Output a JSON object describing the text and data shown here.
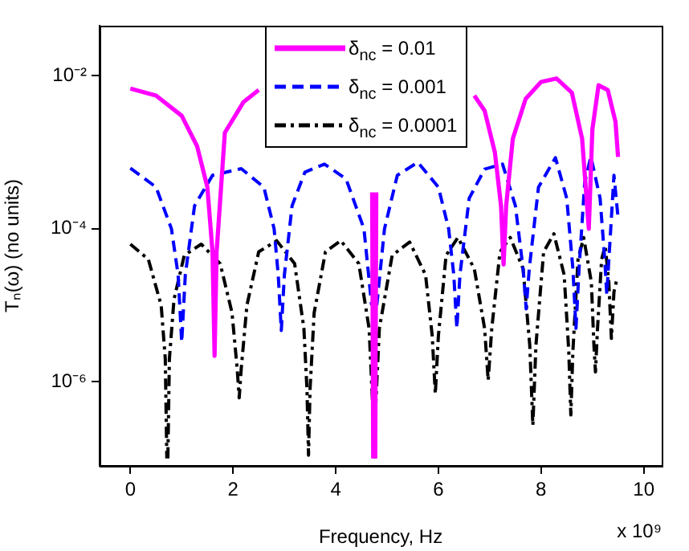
{
  "chart_data": {
    "type": "line",
    "xlabel": "Frequency, Hz",
    "ylabel": "Tₙ(ω) (no units)",
    "annotations": [
      "x 10⁹"
    ],
    "log": "y",
    "legend": "top",
    "grid": false,
    "marker": "none",
    "xlim": [
      -0.6,
      10.35
    ],
    "xticks": [
      0,
      2,
      4,
      6,
      8,
      10
    ],
    "ylim": [
      8e-08,
      0.045
    ],
    "yticks": [
      {
        "value": 1e-06,
        "label": "10⁻⁶"
      },
      {
        "value": 0.0001,
        "label": "10⁻⁴"
      },
      {
        "value": 0.01,
        "label": "10⁻²"
      }
    ],
    "series": [
      {
        "name": "δ$_{nc}$ = 0.01",
        "color": "#ff00ff",
        "line_style": "solid",
        "x": [
          0,
          0.5,
          1.0,
          1.3,
          1.5,
          1.6,
          1.64,
          1.68,
          1.84,
          2.2,
          2.5,
          2.7,
          4.71,
          4.73,
          4.75,
          4.77,
          4.79,
          6.0,
          6.7,
          6.9,
          7.1,
          7.22,
          7.27,
          7.32,
          7.45,
          7.7,
          8.0,
          8.3,
          8.6,
          8.8,
          8.93,
          9.0,
          9.12,
          9.3,
          9.45,
          9.5
        ],
        "values": [
          0.0068,
          0.0055,
          0.003,
          0.0012,
          0.00035,
          5e-05,
          2.2e-06,
          5e-05,
          0.0018,
          0.0045,
          0.0065,
          null,
          0.0003,
          1e-07,
          null,
          1e-07,
          0.0003,
          null,
          0.0055,
          0.0035,
          0.001,
          0.0002,
          3.4e-05,
          0.0002,
          0.0015,
          0.005,
          0.0083,
          0.0092,
          0.006,
          0.0015,
          0.0001,
          0.002,
          0.0075,
          0.0065,
          0.0025,
          0.00087
        ]
      },
      {
        "name": "δ$_{nc}$ = 0.001",
        "color": "#0000ff",
        "line_style": "dashed",
        "x": [
          0,
          0.5,
          0.8,
          0.93,
          1.0,
          1.07,
          1.25,
          1.6,
          2.16,
          2.6,
          2.8,
          2.88,
          2.94,
          3.0,
          3.15,
          3.4,
          3.78,
          4.2,
          4.55,
          4.7,
          4.75,
          4.8,
          4.95,
          5.2,
          5.6,
          6.0,
          6.2,
          6.3,
          6.36,
          6.42,
          6.6,
          6.9,
          7.25,
          7.5,
          7.65,
          7.71,
          7.77,
          7.95,
          8.28,
          8.5,
          8.62,
          8.68,
          8.74,
          8.85,
          8.97,
          9.15,
          9.24,
          9.28,
          9.33,
          9.42,
          9.5
        ],
        "values": [
          0.00062,
          0.00035,
          0.0001,
          2.5e-05,
          3.3e-06,
          2.5e-05,
          0.0002,
          0.0005,
          0.00061,
          0.00035,
          0.0001,
          2.5e-05,
          4.7e-06,
          2.5e-05,
          0.0002,
          0.00055,
          0.0007,
          0.00045,
          0.0001,
          1e-05,
          null,
          1e-05,
          0.0001,
          0.0005,
          0.00074,
          0.00035,
          0.0001,
          2.5e-05,
          5e-06,
          2.5e-05,
          0.00025,
          0.0006,
          0.0007,
          0.0002,
          3e-05,
          9e-06,
          3e-05,
          0.00035,
          0.00085,
          0.00025,
          3e-05,
          5e-06,
          3e-05,
          0.0004,
          0.00088,
          0.00025,
          4e-05,
          1.4e-05,
          5e-05,
          0.0005,
          0.00014
        ]
      },
      {
        "name": "δ$_{nc}$ = 0.0001",
        "color": "#000000",
        "line_style": "dashdot",
        "x": [
          0,
          0.35,
          0.6,
          0.68,
          0.71,
          0.72,
          0.73,
          0.76,
          0.85,
          1.05,
          1.38,
          1.75,
          1.98,
          2.08,
          2.12,
          2.16,
          2.27,
          2.5,
          2.85,
          3.2,
          3.38,
          3.44,
          3.47,
          3.5,
          3.58,
          3.8,
          4.1,
          4.45,
          4.65,
          4.72,
          4.74,
          4.75,
          4.76,
          4.78,
          4.85,
          5.1,
          5.44,
          5.75,
          5.88,
          5.94,
          6.0,
          6.15,
          6.38,
          6.7,
          6.9,
          6.97,
          7.04,
          7.2,
          7.4,
          7.65,
          7.78,
          7.84,
          7.9,
          8.05,
          8.25,
          8.45,
          8.54,
          8.58,
          8.62,
          8.72,
          8.83,
          8.98,
          9.03,
          9.06,
          9.1,
          9.18,
          9.25,
          9.32,
          9.37,
          9.42,
          9.47
        ],
        "values": [
          6.3e-05,
          4e-05,
          1e-05,
          2e-06,
          1e-07,
          null,
          1e-07,
          2e-06,
          1.2e-05,
          4.5e-05,
          6.3e-05,
          3.5e-05,
          8e-06,
          1.5e-06,
          6.2e-07,
          1.5e-06,
          1e-05,
          5e-05,
          7e-05,
          3.5e-05,
          5e-06,
          8e-07,
          1.1e-07,
          8e-07,
          8e-06,
          5e-05,
          7e-05,
          3.5e-05,
          5e-06,
          5e-07,
          1e-07,
          null,
          1e-07,
          5e-07,
          5e-06,
          4.5e-05,
          6.7e-05,
          2.5e-05,
          4e-06,
          7e-07,
          4e-06,
          4.5e-05,
          7.7e-05,
          3e-05,
          5e-06,
          1.05e-06,
          5e-06,
          5e-05,
          7.7e-05,
          3e-05,
          3e-06,
          2.7e-07,
          3e-06,
          5e-05,
          8.6e-05,
          2.5e-05,
          2.5e-06,
          3.7e-07,
          2.5e-06,
          4e-05,
          7.7e-05,
          2e-05,
          3e-06,
          1.35e-06,
          5e-06,
          4e-05,
          6e-05,
          2e-05,
          3.7e-06,
          1.5e-05,
          2.1e-05
        ]
      }
    ]
  }
}
